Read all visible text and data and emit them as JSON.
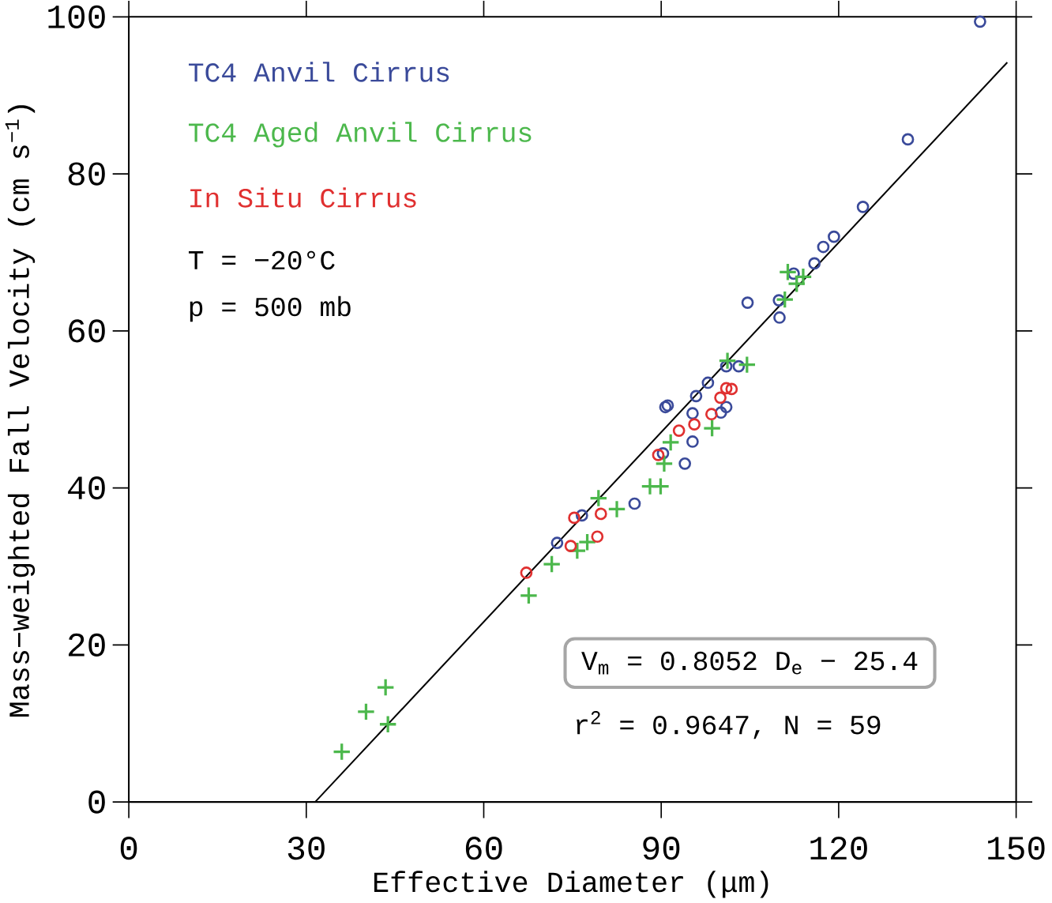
{
  "chart_data": {
    "type": "scatter",
    "xlabel": "Effective Diameter (μm)",
    "ylabel": "Mass−weighted Fall Velocity (cm s$^{−1}$)",
    "xlim": [
      0,
      150
    ],
    "ylim": [
      0,
      100
    ],
    "xticks": [
      0,
      30,
      60,
      90,
      120,
      150
    ],
    "yticks": [
      0,
      20,
      40,
      60,
      80,
      100
    ],
    "grid": false,
    "legend": "top left",
    "annotations": [
      "T = −20°C",
      "p = 500 mb",
      "V$_{m}$ = 0.8052 D$_{e}$ − 25.4",
      "r$^{2}$ = 0.9647, N = 59"
    ],
    "series": [
      {
        "name": "TC4 Anvil Cirrus",
        "color": "#3a4a9a",
        "marker": "circle",
        "x": [
          143.9,
          131.7,
          124.1,
          119.2,
          117.4,
          115.9,
          112.4,
          109.9,
          104.6,
          110.0,
          103.1,
          101.0,
          97.9,
          95.9,
          91.1,
          90.7,
          95.3,
          100.1,
          101.0,
          95.3,
          90.3,
          94.0,
          85.5,
          76.6,
          72.4
        ],
        "values": [
          99.4,
          84.4,
          75.8,
          72.0,
          70.7,
          68.6,
          67.3,
          63.9,
          63.6,
          61.7,
          55.5,
          55.5,
          53.4,
          51.7,
          50.5,
          50.3,
          49.5,
          49.6,
          50.3,
          45.9,
          44.4,
          43.1,
          38.0,
          36.5,
          33.0
        ]
      },
      {
        "name": "TC4 Aged Anvil Cirrus",
        "color": "#4cb84c",
        "marker": "cross",
        "x": [
          36.0,
          40.1,
          43.4,
          43.8,
          67.6,
          71.5,
          75.8,
          77.5,
          79.4,
          82.5,
          88.1,
          89.9,
          90.5,
          91.6,
          98.6,
          101.2,
          104.5,
          110.9,
          111.4,
          112.9,
          114.0
        ],
        "values": [
          6.4,
          11.5,
          14.6,
          9.9,
          26.3,
          30.3,
          32.0,
          33.1,
          38.7,
          37.3,
          40.2,
          40.2,
          43.1,
          45.8,
          47.6,
          56.2,
          55.7,
          64.0,
          67.5,
          66.0,
          66.9
        ]
      },
      {
        "name": "In Situ Cirrus",
        "color": "#e03030",
        "marker": "circle",
        "x": [
          67.2,
          74.7,
          75.3,
          79.2,
          79.8,
          89.5,
          93.0,
          95.6,
          98.5,
          100.0,
          101.0,
          101.9
        ],
        "values": [
          29.2,
          32.6,
          36.2,
          33.8,
          36.7,
          44.2,
          47.3,
          48.1,
          49.4,
          51.5,
          52.7,
          52.6
        ]
      },
      {
        "type": "line",
        "color": "#000000",
        "marker": "none",
        "x": [
          31.5,
          148.5
        ],
        "values": [
          0,
          94.2
        ]
      }
    ]
  }
}
